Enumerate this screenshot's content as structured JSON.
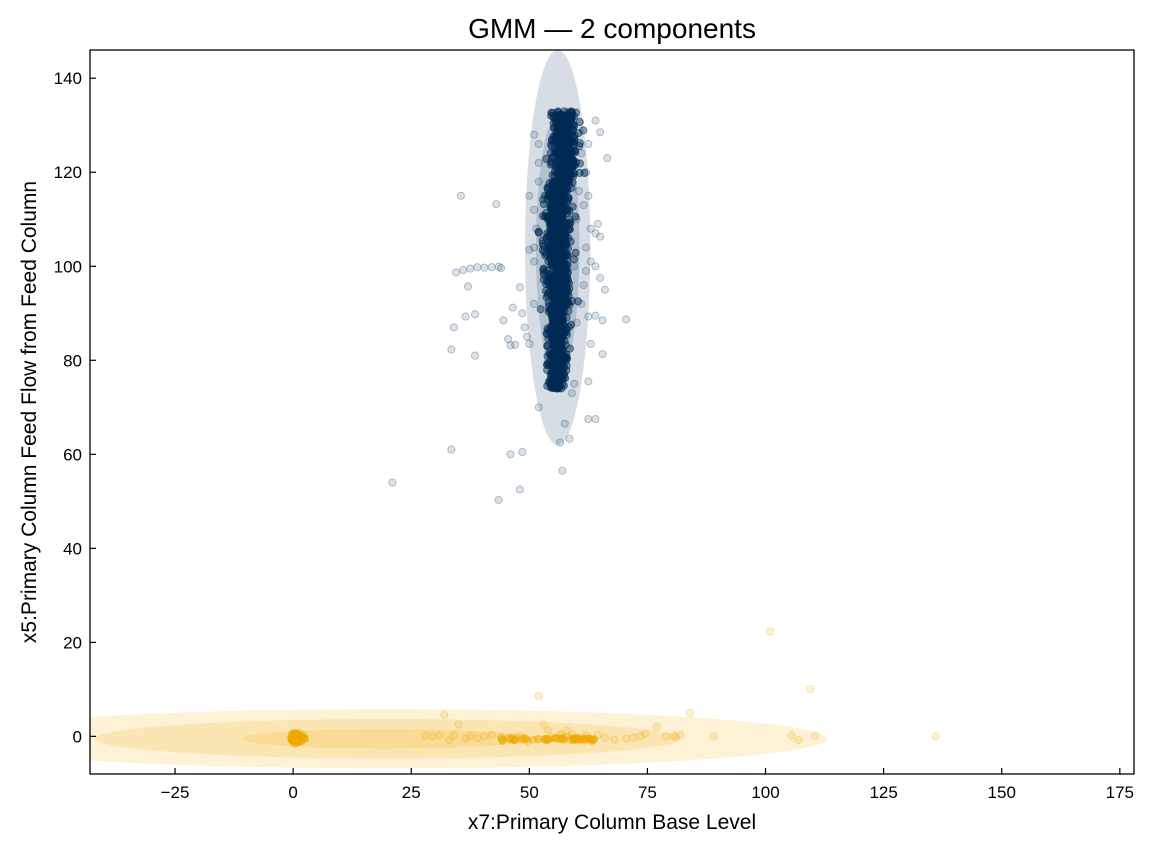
{
  "chart_data": {
    "type": "scatter",
    "title": "GMM — 2 components",
    "xlabel": "x7:Primary Column Base Level",
    "ylabel": "x5:Primary Column Feed Flow from Feed Column",
    "xlim": [
      -43,
      178
    ],
    "ylim": [
      -8,
      146
    ],
    "xticks": [
      -25,
      0,
      25,
      50,
      75,
      100,
      125,
      150,
      175
    ],
    "yticks": [
      0,
      20,
      40,
      60,
      80,
      100,
      120,
      140
    ],
    "xtick_labels": [
      "−25",
      "0",
      "25",
      "50",
      "75",
      "100",
      "125",
      "150",
      "175"
    ],
    "ytick_labels": [
      "0",
      "20",
      "40",
      "60",
      "80",
      "100",
      "120",
      "140"
    ],
    "grid": false,
    "colors": {
      "component_1": "#002b55",
      "component_2": "#f0a800"
    },
    "components": [
      {
        "mean": [
          56,
          104
        ],
        "std": [
          2.3,
          14
        ],
        "color": "#002b55",
        "points": [
          [
            21,
            54
          ],
          [
            35.5,
            115
          ],
          [
            43,
            113.2
          ],
          [
            34,
            87
          ],
          [
            36.5,
            89.3
          ],
          [
            38.5,
            89.8
          ],
          [
            38.5,
            81
          ],
          [
            33.5,
            82.3
          ],
          [
            33.5,
            61
          ],
          [
            37,
            95.7
          ],
          [
            34.5,
            98.7
          ],
          [
            36,
            99.2
          ],
          [
            37.5,
            99.5
          ],
          [
            39,
            99.8
          ],
          [
            40.5,
            99.7
          ],
          [
            42,
            99.8
          ],
          [
            43.5,
            99.9
          ],
          [
            44,
            99.6
          ],
          [
            44.5,
            88.5
          ],
          [
            45.5,
            84.5
          ],
          [
            46,
            83.2
          ],
          [
            47,
            83.3
          ],
          [
            46.5,
            91.2
          ],
          [
            48,
            95.5
          ],
          [
            48.5,
            90
          ],
          [
            49,
            87
          ],
          [
            49.5,
            85
          ],
          [
            50,
            83.5
          ],
          [
            51,
            92
          ],
          [
            51,
            101
          ],
          [
            50,
            103.5
          ],
          [
            51,
            104
          ],
          [
            50,
            115
          ],
          [
            51,
            112
          ],
          [
            51.5,
            108
          ],
          [
            51,
            128
          ],
          [
            52,
            126
          ],
          [
            52,
            122
          ],
          [
            52,
            118
          ],
          [
            46,
            60
          ],
          [
            48.5,
            60.5
          ],
          [
            48,
            52.5
          ],
          [
            43.5,
            50.3
          ],
          [
            52,
            70
          ],
          [
            54.5,
            74.5
          ],
          [
            55,
            76
          ],
          [
            56.5,
            62.5
          ],
          [
            57,
            56.5
          ],
          [
            57.5,
            66.5
          ],
          [
            58.5,
            63.3
          ],
          [
            59,
            73
          ],
          [
            59.5,
            75
          ],
          [
            62.5,
            67.5
          ],
          [
            64,
            67.5
          ],
          [
            60,
            88
          ],
          [
            61,
            92
          ],
          [
            61.5,
            96
          ],
          [
            62,
            99
          ],
          [
            63,
            101
          ],
          [
            64,
            100
          ],
          [
            65,
            97.5
          ],
          [
            66,
            95
          ],
          [
            62.5,
            89.3
          ],
          [
            64,
            89.5
          ],
          [
            65.5,
            88.5
          ],
          [
            70.5,
            88.7
          ],
          [
            63,
            83.5
          ],
          [
            65.5,
            81.3
          ],
          [
            62.5,
            75.5
          ],
          [
            62,
            104
          ],
          [
            63,
            108
          ],
          [
            64,
            107
          ],
          [
            64.5,
            109
          ],
          [
            65,
            106.3
          ],
          [
            61.5,
            113
          ],
          [
            62.5,
            115
          ],
          [
            62,
            120
          ],
          [
            61,
            124
          ],
          [
            62.5,
            126
          ],
          [
            65,
            128.5
          ],
          [
            66.5,
            123
          ],
          [
            64,
            131
          ],
          [
            60.5,
            116
          ],
          [
            60,
            110
          ],
          [
            59.5,
            100
          ]
        ]
      },
      {
        "mean": [
          20,
          -0.5
        ],
        "std": [
          31,
          2.1
        ],
        "color": "#f0a800",
        "points": [
          [
            0,
            -0.5
          ],
          [
            0.5,
            0.3
          ],
          [
            1,
            -0.8
          ],
          [
            1.5,
            -0.3
          ],
          [
            2,
            0.5
          ],
          [
            0.8,
            -1.2
          ],
          [
            1.8,
            -1
          ],
          [
            -0.5,
            -0.2
          ],
          [
            2.5,
            -0.6
          ],
          [
            1.2,
            0.8
          ],
          [
            0.3,
            -0.9
          ],
          [
            2.2,
            0.1
          ],
          [
            28,
            0.2
          ],
          [
            29.5,
            0
          ],
          [
            31,
            0.3
          ],
          [
            32,
            4.6
          ],
          [
            33,
            -0.8
          ],
          [
            34,
            0.2
          ],
          [
            35,
            2.5
          ],
          [
            36.5,
            -0.5
          ],
          [
            37.5,
            0.1
          ],
          [
            39,
            -0.4
          ],
          [
            40.5,
            0
          ],
          [
            42,
            0.3
          ],
          [
            44,
            -0.2
          ],
          [
            46,
            -0.6
          ],
          [
            48,
            0.1
          ],
          [
            52,
            8.6
          ],
          [
            53,
            2.5
          ],
          [
            54,
            1.3
          ],
          [
            58,
            1.2
          ],
          [
            59,
            0.5
          ],
          [
            60,
            -0.5
          ],
          [
            62,
            0.2
          ],
          [
            63,
            -0.6
          ],
          [
            64.5,
            0.3
          ],
          [
            66,
            -0.3
          ],
          [
            68,
            -0.7
          ],
          [
            70.5,
            -0.5
          ],
          [
            72,
            -0.2
          ],
          [
            73.5,
            0.1
          ],
          [
            74.5,
            0.5
          ],
          [
            77,
            2
          ],
          [
            79,
            0
          ],
          [
            80.5,
            0.2
          ],
          [
            81,
            -0.1
          ],
          [
            82,
            0.3
          ],
          [
            84,
            5
          ],
          [
            89,
            0
          ],
          [
            101,
            22.3
          ],
          [
            105.5,
            0.2
          ],
          [
            107,
            -0.8
          ],
          [
            109.5,
            10
          ],
          [
            110.5,
            0.1
          ],
          [
            136,
            0
          ]
        ]
      }
    ],
    "legend": "none"
  }
}
